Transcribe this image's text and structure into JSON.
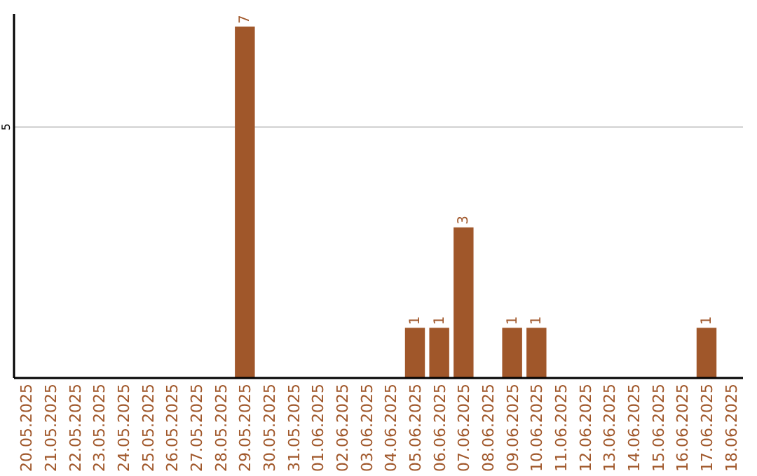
{
  "chart_data": {
    "type": "bar",
    "categories": [
      "20.05.2025",
      "21.05.2025",
      "22.05.2025",
      "23.05.2025",
      "24.05.2025",
      "25.05.2025",
      "26.05.2025",
      "27.05.2025",
      "28.05.2025",
      "29.05.2025",
      "30.05.2025",
      "31.05.2025",
      "01.06.2025",
      "02.06.2025",
      "03.06.2025",
      "04.06.2025",
      "05.06.2025",
      "06.06.2025",
      "07.06.2025",
      "08.06.2025",
      "09.06.2025",
      "10.06.2025",
      "11.06.2025",
      "12.06.2025",
      "13.06.2025",
      "14.06.2025",
      "15.06.2025",
      "16.06.2025",
      "17.06.2025",
      "18.06.2025"
    ],
    "values": [
      0,
      0,
      0,
      0,
      0,
      0,
      0,
      0,
      0,
      7,
      0,
      0,
      0,
      0,
      0,
      0,
      1,
      1,
      3,
      0,
      1,
      1,
      0,
      0,
      0,
      0,
      0,
      0,
      1,
      0
    ],
    "value_labels": [
      null,
      null,
      null,
      null,
      null,
      null,
      null,
      null,
      null,
      "7",
      null,
      null,
      null,
      null,
      null,
      null,
      "1",
      "1",
      "3",
      null,
      "1",
      "1",
      null,
      null,
      null,
      null,
      null,
      null,
      "1",
      null
    ],
    "color": "#a0572a",
    "ylim": [
      0,
      7.25
    ],
    "yticks": [
      5
    ],
    "grid": "y"
  }
}
